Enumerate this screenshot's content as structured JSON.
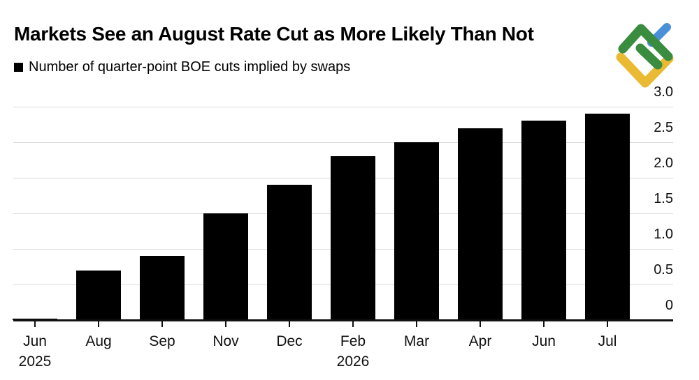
{
  "header": {
    "title": "Markets See an August Rate Cut as More Likely Than Not",
    "legend_label": "Number of quarter-point BOE cuts implied by swaps",
    "legend_swatch_color": "#000000"
  },
  "logo": {
    "name": "litefinance-logo",
    "colors": {
      "green": "#3A8C3F",
      "yellow": "#EBBA33",
      "blue": "#4A90D9"
    }
  },
  "chart_data": {
    "type": "bar",
    "title": "Markets See an August Rate Cut as More Likely Than Not",
    "legend": "Number of quarter-point BOE cuts implied by swaps",
    "categories": [
      "Jun",
      "Aug",
      "Sep",
      "Nov",
      "Dec",
      "Feb",
      "Mar",
      "Apr",
      "Jun",
      "Jul"
    ],
    "category_year_labels": [
      "2025",
      "",
      "",
      "",
      "",
      "2026",
      "",
      "",
      "",
      ""
    ],
    "values": [
      0.02,
      0.7,
      0.9,
      1.5,
      1.9,
      2.3,
      2.5,
      2.7,
      2.8,
      2.9
    ],
    "xlabel": "",
    "ylabel": "Number of quarter-point BOE cuts implied by swaps",
    "ylim": [
      0,
      3
    ],
    "y_ticks": [
      {
        "value": 0,
        "label": "0"
      },
      {
        "value": 0.5,
        "label": "0.5"
      },
      {
        "value": 1,
        "label": "1.0"
      },
      {
        "value": 1.5,
        "label": "1.5"
      },
      {
        "value": 2,
        "label": "2.0"
      },
      {
        "value": 2.5,
        "label": "2.5"
      },
      {
        "value": 3,
        "label": "3.0"
      }
    ],
    "value_axis_side": "right",
    "grid": true,
    "legend_position": "top-left",
    "bar_color": "#000000",
    "grid_color": "#d9d9d9",
    "axis_color": "#111111"
  }
}
